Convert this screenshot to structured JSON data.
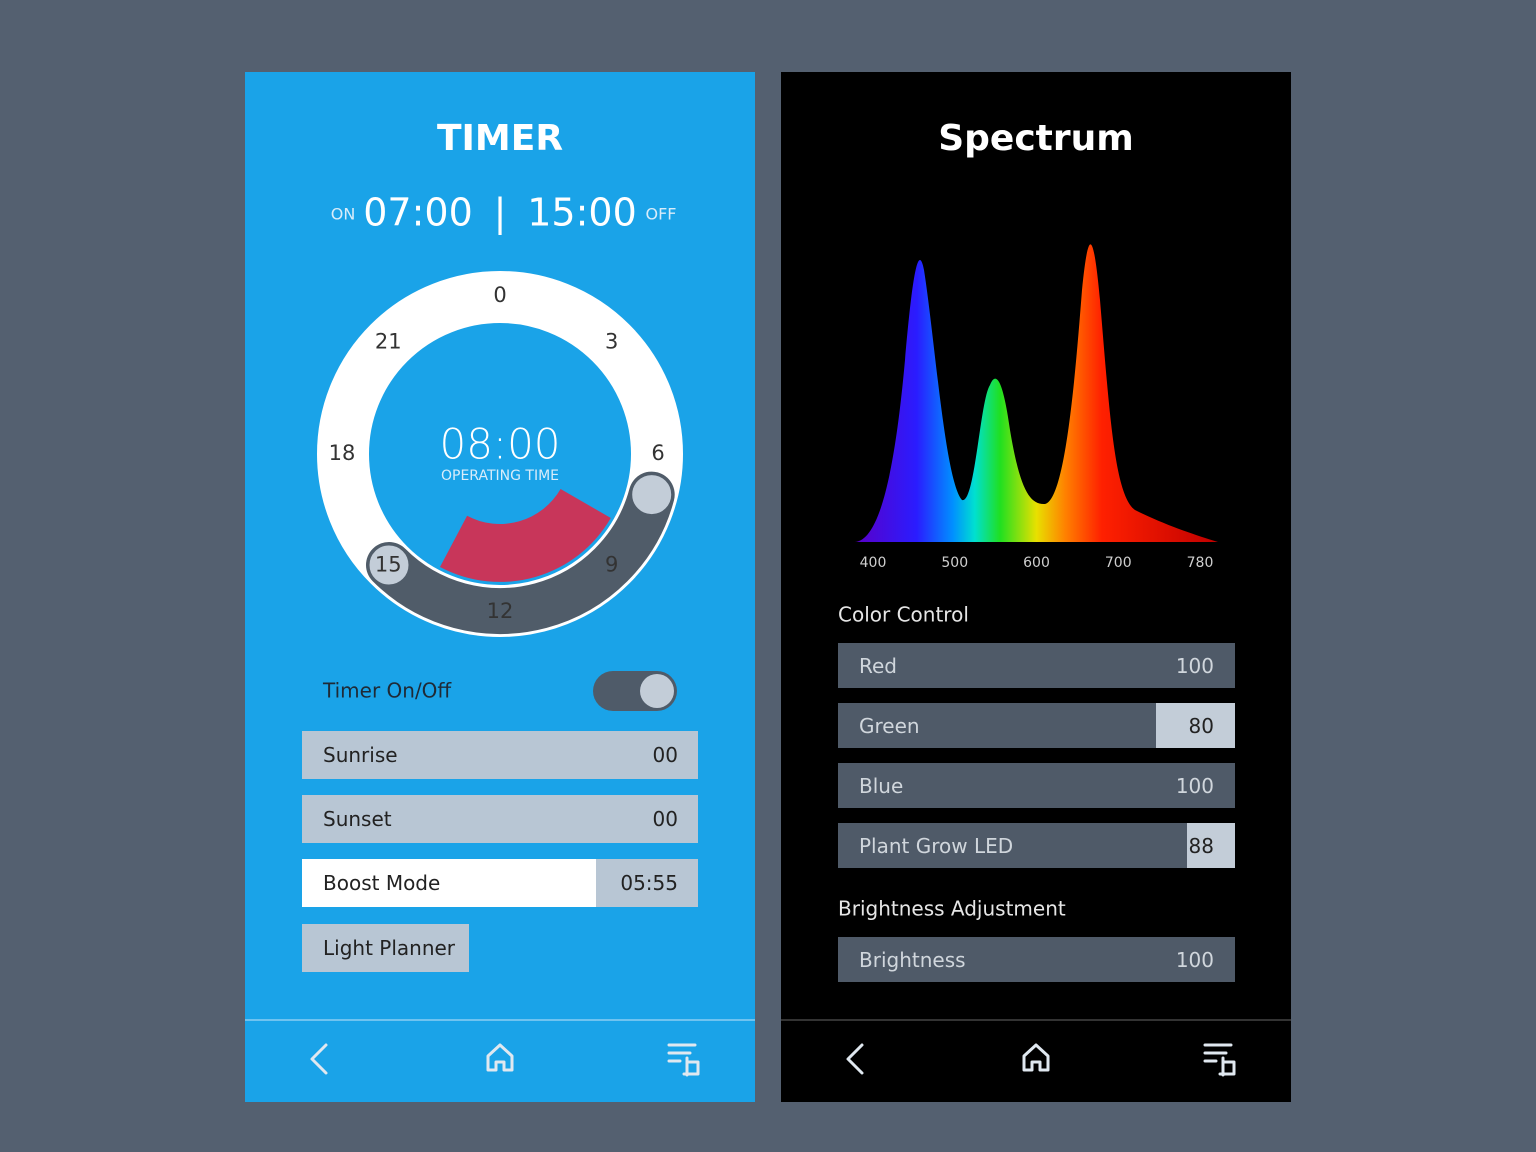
{
  "timer": {
    "title": "TIMER",
    "on_label": "ON",
    "on_time": "07:00",
    "separator": "|",
    "off_time": "15:00",
    "off_label": "OFF",
    "dial_labels": [
      "0",
      "3",
      "6",
      "9",
      "12",
      "15",
      "18",
      "21"
    ],
    "operating_time": "08:00",
    "operating_label": "OPERATING TIME",
    "toggle_label": "Timer On/Off",
    "rows": [
      {
        "label": "Sunrise",
        "value": "00"
      },
      {
        "label": "Sunset",
        "value": "00"
      },
      {
        "label": "Boost Mode",
        "value": "05:55"
      }
    ],
    "light_planner": "Light Planner"
  },
  "spectrum": {
    "title": "Spectrum",
    "xticks": [
      400,
      500,
      600,
      700,
      780
    ],
    "color_control": "Color Control",
    "sliders": [
      {
        "label": "Red",
        "value": 100
      },
      {
        "label": "Green",
        "value": 80
      },
      {
        "label": "Blue",
        "value": 100
      },
      {
        "label": "Plant Grow LED",
        "value": 88
      }
    ],
    "brightness_heading": "Brightness Adjustment",
    "brightness": {
      "label": "Brightness",
      "value": 100
    }
  }
}
